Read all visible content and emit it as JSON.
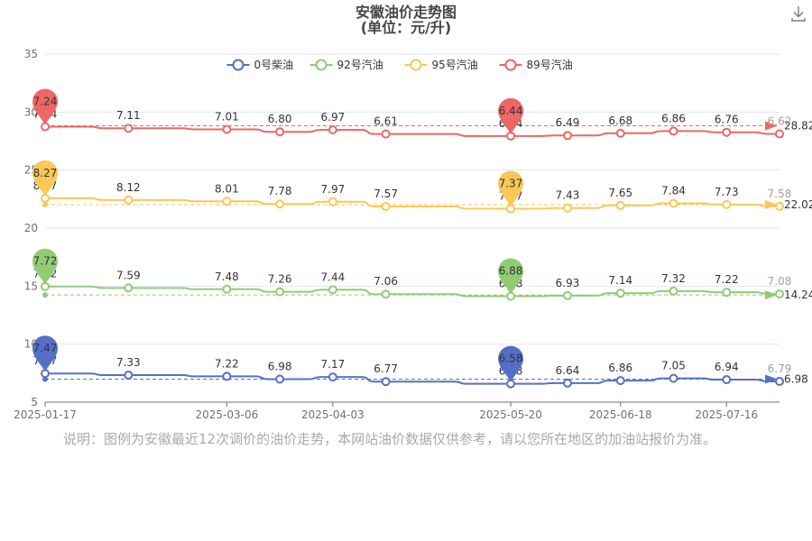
{
  "title": "安徽油价走势图",
  "subtitle": "(单位：元/升)",
  "note": "说明：图例为安徽最近12次调价的油价走势，本网站油价数据仅供参考，请以您所在地区的加油站报价为准。",
  "icons": {
    "download": "download-icon"
  },
  "chart_data": {
    "type": "line",
    "title": "安徽油价走势图",
    "subtitle": "(单位：元/升)",
    "x": [
      "2025-01-17",
      "2025-02-08",
      "2025-03-06",
      "2025-03-20",
      "2025-04-03",
      "2025-04-17",
      "2025-05-20",
      "2025-06-04",
      "2025-06-18",
      "2025-07-02",
      "2025-07-16",
      "2025-07-30"
    ],
    "x_ticks": [
      "2025-01-17",
      "2025-03-06",
      "2025-04-03",
      "2025-05-20",
      "2025-06-18",
      "2025-07-16"
    ],
    "y_ticks": [
      5,
      10,
      15,
      20,
      25,
      30,
      35
    ],
    "ylim": [
      5,
      35
    ],
    "legend_position": "top",
    "series": [
      {
        "name": "0号柴油",
        "color": "#5470c6",
        "values": [
          7.47,
          7.33,
          7.22,
          6.98,
          7.17,
          6.77,
          6.58,
          6.64,
          6.86,
          7.05,
          6.94,
          6.79
        ],
        "pin": {
          "max": "7.47",
          "min": "6.58"
        },
        "avg_label": "6.98",
        "avg_y": 6.98
      },
      {
        "name": "92号汽油",
        "color": "#91cc75",
        "values": [
          7.72,
          7.59,
          7.48,
          7.26,
          7.44,
          7.06,
          6.88,
          6.93,
          7.14,
          7.32,
          7.22,
          7.08
        ],
        "pin": {
          "max": "7.72",
          "min": "6.88"
        },
        "avg_label": "14.24",
        "avg_y": 14.24
      },
      {
        "name": "95号汽油",
        "color": "#fac858",
        "values": [
          8.27,
          8.12,
          8.01,
          7.78,
          7.97,
          7.57,
          7.37,
          7.43,
          7.65,
          7.84,
          7.73,
          7.58
        ],
        "pin": {
          "max": "8.27",
          "min": "7.37"
        },
        "avg_label": "22.02",
        "avg_y": 22.02
      },
      {
        "name": "89号汽油",
        "color": "#ee6666",
        "values": [
          7.24,
          7.11,
          7.01,
          6.8,
          6.97,
          6.61,
          6.44,
          6.49,
          6.68,
          6.86,
          6.76,
          6.62
        ],
        "pin": {
          "max": "7.24",
          "min": "6.44"
        },
        "avg_label": "28.82",
        "avg_y": 28.82
      }
    ]
  }
}
